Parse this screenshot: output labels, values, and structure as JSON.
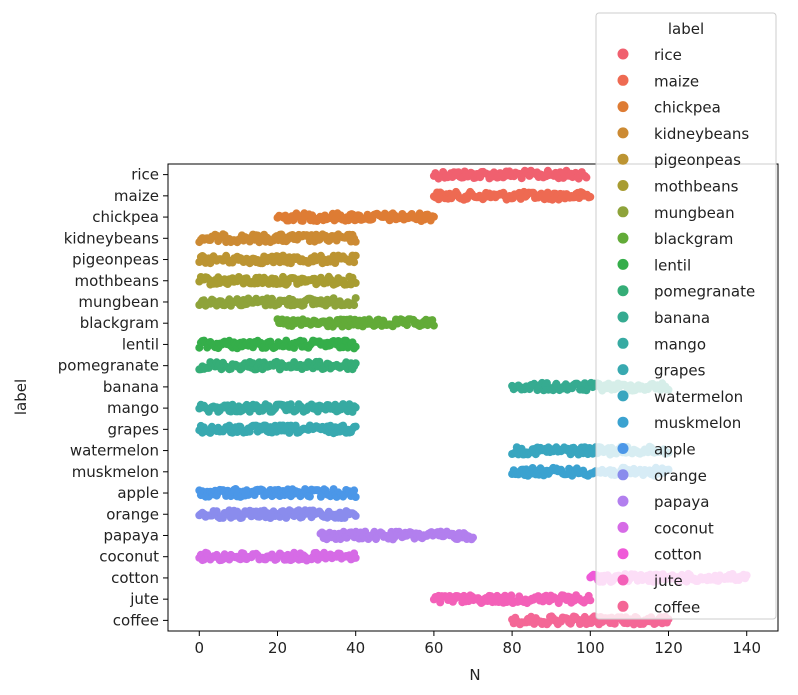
{
  "chart_data": {
    "type": "scatter",
    "xlabel": "N",
    "ylabel": "label",
    "xlim": [
      -8,
      148
    ],
    "xticks": [
      0,
      20,
      40,
      60,
      80,
      100,
      120,
      140
    ],
    "grid": false,
    "legend": {
      "title": "label",
      "placement": "top-right"
    },
    "categories": [
      "rice",
      "maize",
      "chickpea",
      "kidneybeans",
      "pigeonpeas",
      "mothbeans",
      "mungbean",
      "blackgram",
      "lentil",
      "pomegranate",
      "banana",
      "mango",
      "grapes",
      "watermelon",
      "muskmelon",
      "apple",
      "orange",
      "papaya",
      "coconut",
      "cotton",
      "jute",
      "coffee"
    ],
    "series": [
      {
        "name": "rice",
        "range": [
          60,
          99
        ],
        "color": "#f0606f"
      },
      {
        "name": "maize",
        "range": [
          60,
          100
        ],
        "color": "#ee6a52"
      },
      {
        "name": "chickpea",
        "range": [
          20,
          60
        ],
        "color": "#de7c34"
      },
      {
        "name": "kidneybeans",
        "range": [
          0,
          40
        ],
        "color": "#cc8a33"
      },
      {
        "name": "pigeonpeas",
        "range": [
          0,
          40
        ],
        "color": "#bc9432"
      },
      {
        "name": "mothbeans",
        "range": [
          0,
          40
        ],
        "color": "#a89c31"
      },
      {
        "name": "mungbean",
        "range": [
          0,
          40
        ],
        "color": "#8ea33a"
      },
      {
        "name": "blackgram",
        "range": [
          20,
          60
        ],
        "color": "#62ab38"
      },
      {
        "name": "lentil",
        "range": [
          0,
          40
        ],
        "color": "#35ae4a"
      },
      {
        "name": "pomegranate",
        "range": [
          0,
          40
        ],
        "color": "#35ad77"
      },
      {
        "name": "banana",
        "range": [
          80,
          120
        ],
        "color": "#36ab91"
      },
      {
        "name": "mango",
        "range": [
          0,
          40
        ],
        "color": "#37aaa2"
      },
      {
        "name": "grapes",
        "range": [
          0,
          40
        ],
        "color": "#38a9b0"
      },
      {
        "name": "watermelon",
        "range": [
          80,
          120
        ],
        "color": "#39a6bf"
      },
      {
        "name": "muskmelon",
        "range": [
          80,
          120
        ],
        "color": "#3ba2d0"
      },
      {
        "name": "apple",
        "range": [
          0,
          40
        ],
        "color": "#4b97e8"
      },
      {
        "name": "orange",
        "range": [
          0,
          40
        ],
        "color": "#8a8ced"
      },
      {
        "name": "papaya",
        "range": [
          31,
          70
        ],
        "color": "#b27fee"
      },
      {
        "name": "coconut",
        "range": [
          0,
          40
        ],
        "color": "#d66be6"
      },
      {
        "name": "cotton",
        "range": [
          100,
          140
        ],
        "color": "#ef5ad8"
      },
      {
        "name": "jute",
        "range": [
          60,
          100
        ],
        "color": "#f360b8"
      },
      {
        "name": "coffee",
        "range": [
          80,
          120
        ],
        "color": "#f46796"
      }
    ]
  }
}
